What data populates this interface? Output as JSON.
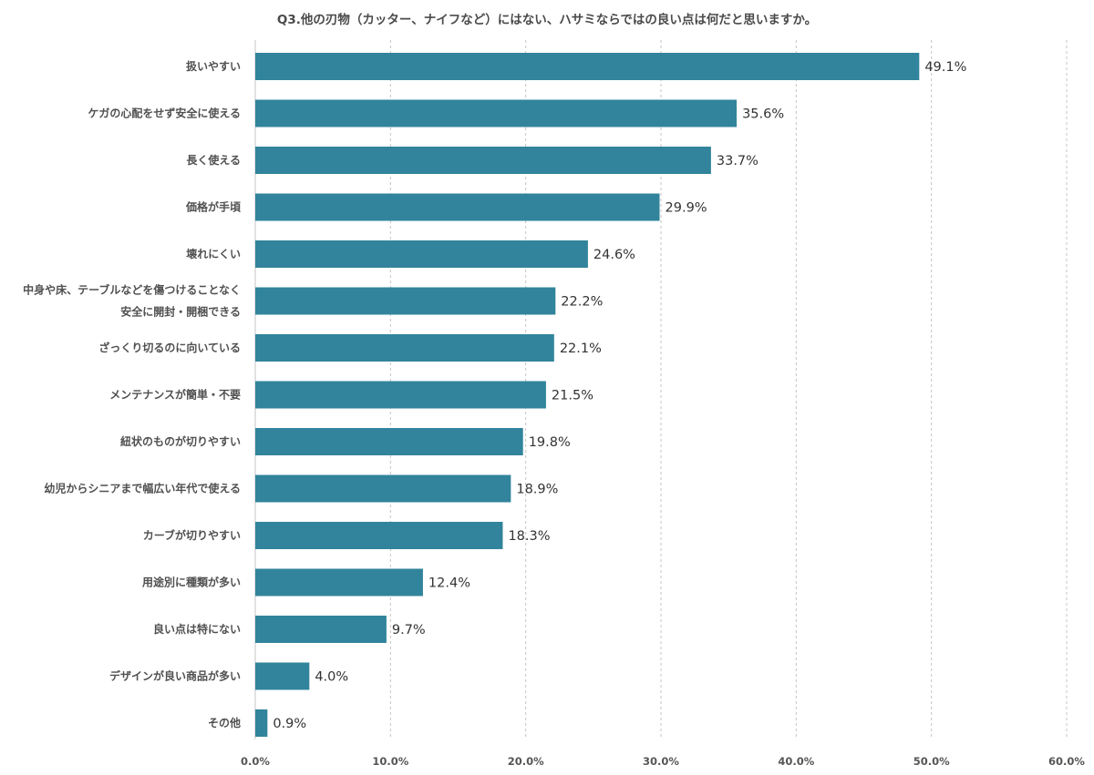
{
  "chart_data": {
    "type": "bar",
    "orientation": "horizontal",
    "title": "Q3.他の刃物（カッター、ナイフなど）にはない、ハサミならではの良い点は何だと思いますか。",
    "categories": [
      [
        "扱いやすい"
      ],
      [
        "ケガの心配をせず安全に使える"
      ],
      [
        "長く使える"
      ],
      [
        "価格が手頃"
      ],
      [
        "壊れにくい"
      ],
      [
        "中身や床、テーブルなどを傷つけることなく",
        "安全に開封・開梱できる"
      ],
      [
        "ざっくり切るのに向いている"
      ],
      [
        "メンテナンスが簡単・不要"
      ],
      [
        "紐状のものが切りやすい"
      ],
      [
        "幼児からシニアまで幅広い年代で使える"
      ],
      [
        "カーブが切りやすい"
      ],
      [
        "用途別に種類が多い"
      ],
      [
        "良い点は特にない"
      ],
      [
        "デザインが良い商品が多い"
      ],
      [
        "その他"
      ]
    ],
    "values": [
      49.1,
      35.6,
      33.7,
      29.9,
      24.6,
      22.2,
      22.1,
      21.5,
      19.8,
      18.9,
      18.3,
      12.4,
      9.7,
      4.0,
      0.9
    ],
    "value_labels": [
      "49.1%",
      "35.6%",
      "33.7%",
      "29.9%",
      "24.6%",
      "22.2%",
      "22.1%",
      "21.5%",
      "19.8%",
      "18.9%",
      "18.3%",
      "12.4%",
      "9.7%",
      "4.0%",
      "0.9%"
    ],
    "xlim": [
      0,
      60
    ],
    "xticks": [
      0,
      10,
      20,
      30,
      40,
      50,
      60
    ],
    "xtick_labels": [
      "0.0%",
      "10.0%",
      "20.0%",
      "30.0%",
      "40.0%",
      "50.0%",
      "60.0%"
    ],
    "grid": "vertical-dashed",
    "legend": "none",
    "bar_color": "#31849b"
  }
}
